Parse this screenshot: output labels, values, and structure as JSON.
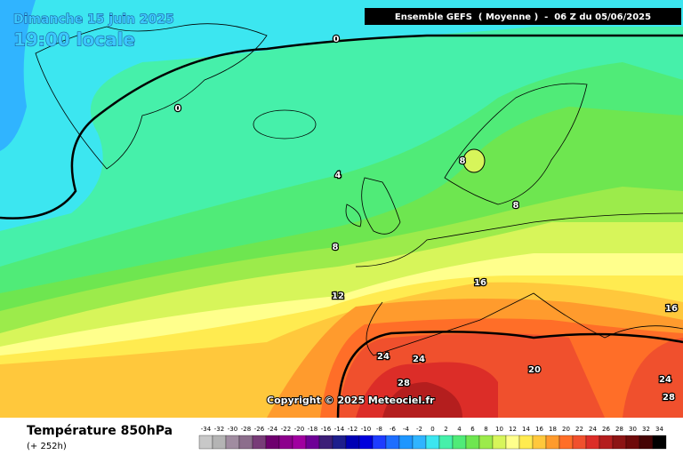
{
  "header": {
    "date": "Dimanche 15 juin 2025",
    "time": "19:00 locale",
    "run": "Ensemble GEFS  ( Moyenne )  -  06 Z du 05/06/2025"
  },
  "map": {
    "contour_labels": [
      0,
      0,
      4,
      8,
      8,
      8,
      12,
      16,
      16,
      20,
      24,
      24,
      28,
      24,
      28
    ],
    "copyright": "Copyright © 2025 Meteociel.fr"
  },
  "legend": {
    "title": "Température 850hPa",
    "lead_time": "(+ 252h)",
    "scale": [
      {
        "value": -34,
        "color": "#c8c8c8"
      },
      {
        "value": -32,
        "color": "#b4b4b4"
      },
      {
        "value": -30,
        "color": "#a08ca0"
      },
      {
        "value": -28,
        "color": "#8c6e8c"
      },
      {
        "value": -26,
        "color": "#783c78"
      },
      {
        "value": -24,
        "color": "#6e006e"
      },
      {
        "value": -22,
        "color": "#8c008c"
      },
      {
        "value": -20,
        "color": "#a000a0"
      },
      {
        "value": -18,
        "color": "#6e0096"
      },
      {
        "value": -16,
        "color": "#3c1e78"
      },
      {
        "value": -14,
        "color": "#1e1e8c"
      },
      {
        "value": -12,
        "color": "#0000b4"
      },
      {
        "value": -10,
        "color": "#0000dc"
      },
      {
        "value": -8,
        "color": "#1e3cff"
      },
      {
        "value": -6,
        "color": "#1e6eff"
      },
      {
        "value": -4,
        "color": "#1e96ff"
      },
      {
        "value": -2,
        "color": "#30b4ff"
      },
      {
        "value": 0,
        "color": "#3ce6f0"
      },
      {
        "value": 2,
        "color": "#46f0aa"
      },
      {
        "value": 4,
        "color": "#50eb78"
      },
      {
        "value": 6,
        "color": "#6ee650"
      },
      {
        "value": 8,
        "color": "#9ceb4b"
      },
      {
        "value": 10,
        "color": "#d7f55a"
      },
      {
        "value": 12,
        "color": "#ffff8c"
      },
      {
        "value": 14,
        "color": "#ffeb50"
      },
      {
        "value": 16,
        "color": "#ffc83c"
      },
      {
        "value": 18,
        "color": "#ff9b2d"
      },
      {
        "value": 20,
        "color": "#ff6e28"
      },
      {
        "value": 22,
        "color": "#f0502d"
      },
      {
        "value": 24,
        "color": "#dc2d28"
      },
      {
        "value": 26,
        "color": "#b41e1e"
      },
      {
        "value": 28,
        "color": "#8c1414"
      },
      {
        "value": 30,
        "color": "#6e0a0a"
      },
      {
        "value": 32,
        "color": "#460505"
      },
      {
        "value": 34,
        "color": "#000000"
      }
    ]
  }
}
